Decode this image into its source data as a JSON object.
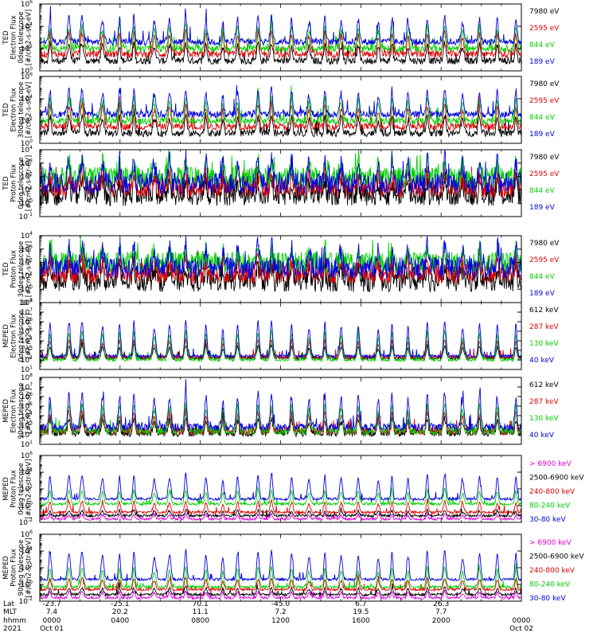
{
  "chart_data": [
    {
      "type": "line",
      "detector": "TED",
      "particle": "Electron",
      "telescope": "0deg",
      "ylabel": [
        "TED",
        "Electron Flux",
        "0deg telescope",
        "[#/cm2-s-str-eV]"
      ],
      "log_y": true,
      "ylim_exp": [
        0,
        6
      ],
      "tick_exps": [
        0,
        2,
        4,
        6
      ],
      "noise": [
        0.3,
        0.6
      ],
      "series": [
        {
          "name": "7980 eV",
          "color": "#000000",
          "base": 0.9,
          "peak": 2.6
        },
        {
          "name": "2595 eV",
          "color": "#e00000",
          "base": 1.5,
          "peak": 3.6
        },
        {
          "name": "844 eV",
          "color": "#00d000",
          "base": 2.0,
          "peak": 4.2
        },
        {
          "name": "189 eV",
          "color": "#0000e0",
          "base": 2.6,
          "peak": 5.0
        }
      ]
    },
    {
      "type": "line",
      "detector": "TED",
      "particle": "Electron",
      "telescope": "30deg",
      "ylabel": [
        "TED",
        "Electron Flux",
        "30deg telescope",
        "[#/cm2-s-str-eV]"
      ],
      "log_y": true,
      "ylim_exp": [
        0,
        6
      ],
      "tick_exps": [
        0,
        2,
        4,
        6
      ],
      "noise": [
        0.3,
        0.6
      ],
      "series": [
        {
          "name": "7980 eV",
          "color": "#000000",
          "base": 0.9,
          "peak": 2.6
        },
        {
          "name": "2595 eV",
          "color": "#e00000",
          "base": 1.5,
          "peak": 3.6
        },
        {
          "name": "844 eV",
          "color": "#00d000",
          "base": 2.0,
          "peak": 4.2
        },
        {
          "name": "189 eV",
          "color": "#0000e0",
          "base": 2.6,
          "peak": 5.0
        }
      ]
    },
    {
      "type": "line",
      "detector": "TED",
      "particle": "Proton",
      "telescope": "0deg",
      "ylabel": [
        "TED",
        "Proton Flux",
        "0deg telescope",
        "[#/cm2-s-str-eV]"
      ],
      "log_y": true,
      "ylim_exp": [
        -1,
        4
      ],
      "tick_exps": [
        -1,
        0,
        1,
        2,
        3,
        4
      ],
      "noise": [
        0.8,
        0.6
      ],
      "series": [
        {
          "name": "7980 eV",
          "color": "#000000",
          "base": 0.6,
          "peak": 1.8
        },
        {
          "name": "2595 eV",
          "color": "#e00000",
          "base": 1.2,
          "peak": 2.4
        },
        {
          "name": "844 eV",
          "color": "#00d000",
          "base": 1.9,
          "peak": 3.2
        },
        {
          "name": "189 eV",
          "color": "#0000e0",
          "base": 1.5,
          "peak": 3.5
        }
      ]
    },
    {
      "type": "line",
      "detector": "TED",
      "particle": "Proton",
      "telescope": "30deg",
      "ylabel": [
        "TED",
        "Proton Flux",
        "30deg telescope",
        "[#/cm2-s-str-eV]"
      ],
      "log_y": true,
      "ylim_exp": [
        -1,
        4
      ],
      "tick_exps": [
        -1,
        0,
        1,
        2,
        3,
        4
      ],
      "noise": [
        0.8,
        0.6
      ],
      "series": [
        {
          "name": "7980 eV",
          "color": "#000000",
          "base": 0.6,
          "peak": 1.8
        },
        {
          "name": "2595 eV",
          "color": "#e00000",
          "base": 1.2,
          "peak": 2.4
        },
        {
          "name": "844 eV",
          "color": "#00d000",
          "base": 2.0,
          "peak": 3.0
        },
        {
          "name": "189 eV",
          "color": "#0000e0",
          "base": 1.6,
          "peak": 3.4
        }
      ]
    },
    {
      "type": "line",
      "detector": "MEPED",
      "particle": "Electron",
      "telescope": "0deg",
      "ylabel": [
        "MEPED",
        "Electron Flux",
        "0deg telescope",
        "[#/cm2-s-str]"
      ],
      "log_y": true,
      "ylim_exp": [
        1,
        8
      ],
      "tick_exps": [
        1,
        2,
        3,
        4,
        5,
        6,
        7,
        8
      ],
      "noise": [
        0.15,
        0.4
      ],
      "series": [
        {
          "name": "612 keV",
          "color": "#000000",
          "base": 2.2,
          "peak": 3.6
        },
        {
          "name": "287 keV",
          "color": "#e00000",
          "base": 2.3,
          "peak": 4.2
        },
        {
          "name": "130 keV",
          "color": "#00d000",
          "base": 2.0,
          "peak": 5.2
        },
        {
          "name": "40 keV",
          "color": "#0000e0",
          "base": 2.4,
          "peak": 6.3
        }
      ]
    },
    {
      "type": "line",
      "detector": "MEPED",
      "particle": "Electron",
      "telescope": "90deg",
      "ylabel": [
        "MEPED",
        "Electron Flux",
        "90deg telescope",
        "[#/cm2-s-str]"
      ],
      "log_y": true,
      "ylim_exp": [
        1,
        8
      ],
      "tick_exps": [
        1,
        2,
        3,
        4,
        5,
        6,
        7,
        8
      ],
      "noise": [
        0.4,
        0.6
      ],
      "series": [
        {
          "name": "612 keV",
          "color": "#000000",
          "base": 2.2,
          "peak": 3.8
        },
        {
          "name": "287 keV",
          "color": "#e00000",
          "base": 2.4,
          "peak": 4.5
        },
        {
          "name": "130 keV",
          "color": "#00d000",
          "base": 2.4,
          "peak": 5.4
        },
        {
          "name": "40 keV",
          "color": "#0000e0",
          "base": 2.8,
          "peak": 6.6
        }
      ]
    },
    {
      "type": "line",
      "detector": "MEPED",
      "particle": "Proton",
      "telescope": "0deg",
      "ylabel": [
        "MEPED",
        "Proton Flux",
        "0deg telescope",
        "[#/cm2-s-str-keV]"
      ],
      "log_y": true,
      "ylim_exp": [
        -2,
        6
      ],
      "tick_exps": [
        -2,
        0,
        2,
        4,
        6
      ],
      "noise": [
        0.15,
        0.4
      ],
      "series": [
        {
          "name": "> 6900 keV",
          "color": "#e000e0",
          "base": -1.6,
          "peak": -1.0
        },
        {
          "name": "2500-6900 keV",
          "color": "#000000",
          "base": -1.2,
          "peak": -0.5
        },
        {
          "name": "240-800 keV",
          "color": "#e00000",
          "base": -0.8,
          "peak": 0.6
        },
        {
          "name": "80-240 keV",
          "color": "#00d000",
          "base": 0.2,
          "peak": 2.0
        },
        {
          "name": "30-80 keV",
          "color": "#0000e0",
          "base": 0.8,
          "peak": 3.9
        }
      ]
    },
    {
      "type": "line",
      "detector": "MEPED",
      "particle": "Proton",
      "telescope": "90deg",
      "ylabel": [
        "MEPED",
        "Proton Flux",
        "90deg telescope",
        "[#/cm2-s-str-keV]"
      ],
      "log_y": true,
      "ylim_exp": [
        -2,
        6
      ],
      "tick_exps": [
        -2,
        0,
        2,
        4,
        6
      ],
      "noise": [
        0.15,
        0.4
      ],
      "series": [
        {
          "name": "> 6900 keV",
          "color": "#e000e0",
          "base": -1.6,
          "peak": -0.8
        },
        {
          "name": "2500-6900 keV",
          "color": "#000000",
          "base": -1.2,
          "peak": -0.3
        },
        {
          "name": "240-800 keV",
          "color": "#e00000",
          "base": -0.6,
          "peak": 0.8
        },
        {
          "name": "80-240 keV",
          "color": "#00d000",
          "base": -0.3,
          "peak": 2.2
        },
        {
          "name": "30-80 keV",
          "color": "#0000e0",
          "base": 0.6,
          "peak": 4.2
        }
      ]
    }
  ],
  "x_axis": {
    "row_labels": [
      "Lat",
      "MLT",
      "hhmm",
      "2021"
    ],
    "ticks": [
      {
        "hour": 0,
        "lat": "-23.7",
        "mlt": "7.4",
        "hhmm": "0000",
        "date": "Oct 01"
      },
      {
        "hour": 4,
        "lat": "-25.1",
        "mlt": "20.2",
        "hhmm": "0400",
        "date": ""
      },
      {
        "hour": 8,
        "lat": "70.1",
        "mlt": "11.1",
        "hhmm": "0800",
        "date": ""
      },
      {
        "hour": 12,
        "lat": "-45.0",
        "mlt": "7.2",
        "hhmm": "1200",
        "date": ""
      },
      {
        "hour": 16,
        "lat": "6.7",
        "mlt": "19.5",
        "hhmm": "1600",
        "date": ""
      },
      {
        "hour": 20,
        "lat": "26.3",
        "mlt": "7.7",
        "hhmm": "2000",
        "date": ""
      },
      {
        "hour": 24,
        "lat": "",
        "mlt": "",
        "hhmm": "0000",
        "date": "Oct 02"
      }
    ],
    "range_hours": [
      0,
      24
    ],
    "pass_count": 28
  }
}
